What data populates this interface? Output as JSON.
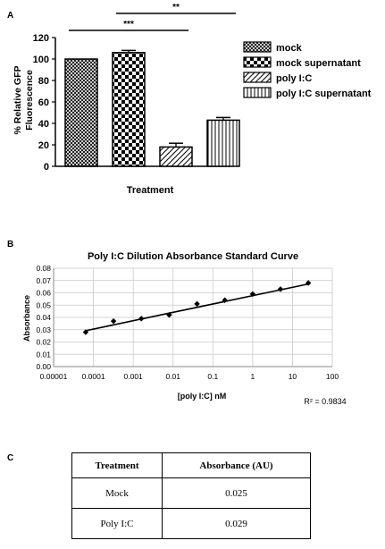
{
  "panels": {
    "a": "A",
    "b": "B",
    "c": "C"
  },
  "chart_data": [
    {
      "type": "bar",
      "panel": "A",
      "ylabel": "% Relative GFP Fluorescence",
      "xlabel": "Treatment",
      "ylim": [
        0,
        120
      ],
      "yticks": [
        0,
        20,
        40,
        60,
        80,
        100,
        120
      ],
      "categories": [
        "mock",
        "mock supernatant",
        "poly I:C",
        "poly I:C supernatant"
      ],
      "values": [
        100,
        106,
        18,
        43
      ],
      "errors": [
        0,
        2,
        3.5,
        2.5
      ],
      "patterns": [
        "crosshatch",
        "checker",
        "diagonal",
        "vertical"
      ],
      "significance": [
        {
          "from": 0,
          "to": 2,
          "label": "***"
        },
        {
          "from": 1,
          "to": 3,
          "label": "**"
        }
      ],
      "legend_position": "right",
      "grid": false
    },
    {
      "type": "scatter",
      "panel": "B",
      "title": "Poly I:C Dilution Absorbance Standard Curve",
      "xlabel": "[poly I:C] nM",
      "ylabel": "Absorbance",
      "xscale": "log",
      "xlim": [
        1e-05,
        100
      ],
      "xticks": [
        "0.00001",
        "0.0001",
        "0.001",
        "0.01",
        "0.1",
        "1",
        "10",
        "100"
      ],
      "ylim": [
        0,
        0.08
      ],
      "yticks": [
        "0.00",
        "0.01",
        "0.02",
        "0.03",
        "0.04",
        "0.05",
        "0.06",
        "0.07",
        "0.08"
      ],
      "x": [
        6.4e-05,
        0.00032,
        0.0016,
        0.008,
        0.04,
        0.2,
        1,
        5,
        25
      ],
      "y": [
        0.028,
        0.037,
        0.039,
        0.042,
        0.051,
        0.054,
        0.059,
        0.063,
        0.068
      ],
      "yerr": [
        0.001,
        0.001,
        0.0008,
        0.001,
        0.001,
        0.001,
        0.001,
        0.0015,
        0.0012
      ],
      "trendline": {
        "type": "log",
        "from": [
          6.4e-05,
          0.0292
        ],
        "to": [
          25,
          0.0672
        ]
      },
      "r2_label": "R² = 0.9834",
      "grid": true
    },
    {
      "type": "table",
      "panel": "C",
      "columns": [
        "Treatment",
        "Absorbance (AU)"
      ],
      "rows": [
        [
          "Mock",
          "0.025"
        ],
        [
          "Poly I:C",
          "0.029"
        ]
      ]
    }
  ]
}
